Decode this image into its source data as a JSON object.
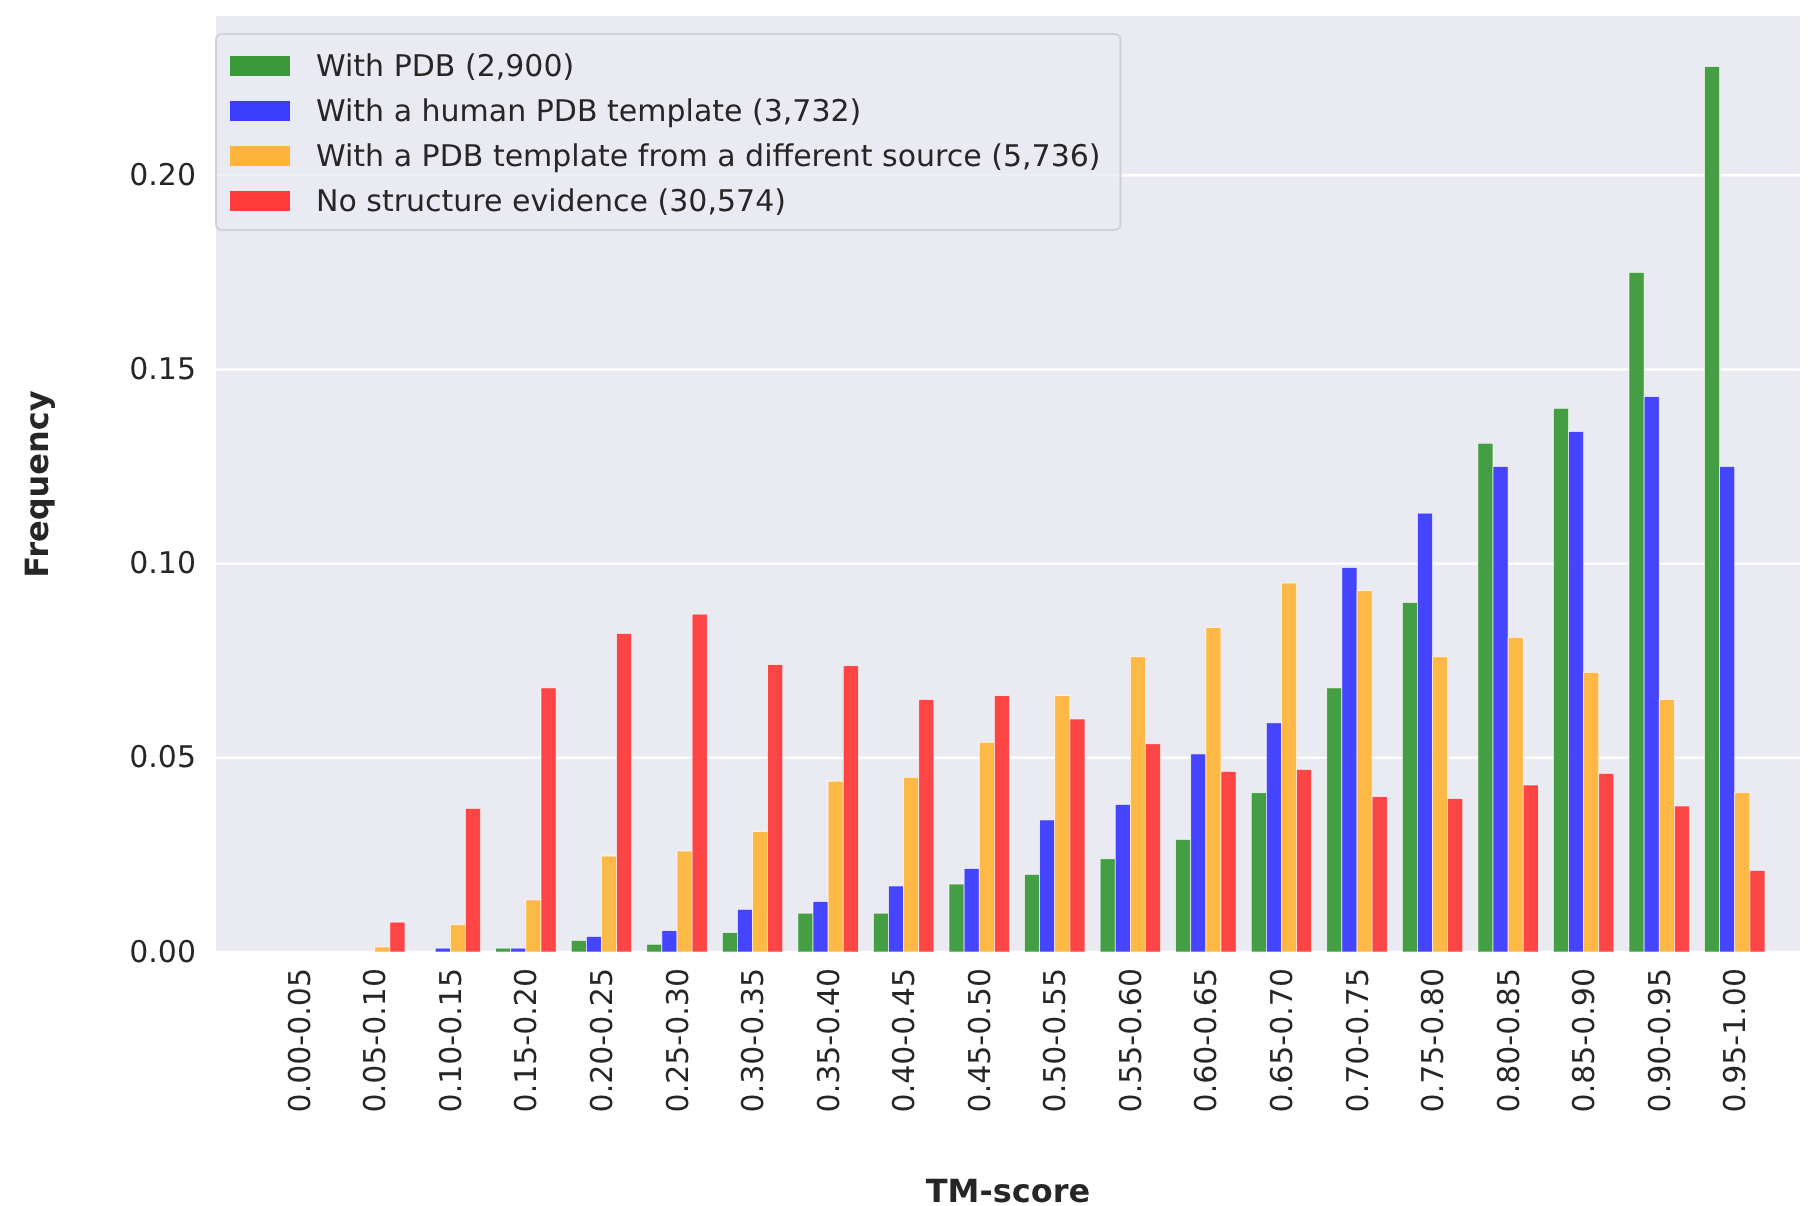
{
  "chart_data": {
    "type": "bar",
    "xlabel": "TM-score",
    "ylabel": "Frequency",
    "categories": [
      "0.00-0.05",
      "0.05-0.10",
      "0.10-0.15",
      "0.15-0.20",
      "0.20-0.25",
      "0.25-0.30",
      "0.30-0.35",
      "0.35-0.40",
      "0.40-0.45",
      "0.45-0.50",
      "0.50-0.55",
      "0.55-0.60",
      "0.60-0.65",
      "0.65-0.70",
      "0.70-0.75",
      "0.75-0.80",
      "0.80-0.85",
      "0.85-0.90",
      "0.90-0.95",
      "0.95-1.00"
    ],
    "series": [
      {
        "name": "With PDB (2,900)",
        "color": "#3a9a3a",
        "values": [
          0,
          0,
          0,
          0.001,
          0.003,
          0.002,
          0.005,
          0.01,
          0.01,
          0.0175,
          0.02,
          0.024,
          0.029,
          0.041,
          0.068,
          0.09,
          0.131,
          0.14,
          0.175,
          0.228
        ]
      },
      {
        "name": "With a human PDB template (3,732)",
        "color": "#3c3cff",
        "values": [
          0,
          0,
          0.001,
          0.001,
          0.004,
          0.0055,
          0.011,
          0.013,
          0.017,
          0.0215,
          0.034,
          0.038,
          0.051,
          0.059,
          0.099,
          0.113,
          0.125,
          0.134,
          0.143,
          0.125
        ]
      },
      {
        "name": "With a PDB template from a different source (5,736)",
        "color": "#ffb53c",
        "values": [
          0,
          0.0013,
          0.007,
          0.0134,
          0.0247,
          0.026,
          0.031,
          0.044,
          0.045,
          0.054,
          0.066,
          0.076,
          0.0835,
          0.095,
          0.093,
          0.076,
          0.081,
          0.072,
          0.065,
          0.041
        ]
      },
      {
        "name": "No structure evidence (30,574)",
        "color": "#ff3c3c",
        "values": [
          0,
          0.0077,
          0.037,
          0.068,
          0.082,
          0.087,
          0.074,
          0.0737,
          0.065,
          0.066,
          0.06,
          0.0536,
          0.0465,
          0.047,
          0.04,
          0.0395,
          0.043,
          0.046,
          0.0376,
          0.021
        ]
      }
    ],
    "ylim": [
      0,
      0.241
    ],
    "yticks": [
      {
        "value": 0,
        "label": "0.00"
      },
      {
        "value": 0.05,
        "label": "0.05"
      },
      {
        "value": 0.1,
        "label": "0.10"
      },
      {
        "value": 0.15,
        "label": "0.15"
      },
      {
        "value": 0.2,
        "label": "0.20"
      }
    ],
    "grid": "y",
    "legend": "top left"
  }
}
